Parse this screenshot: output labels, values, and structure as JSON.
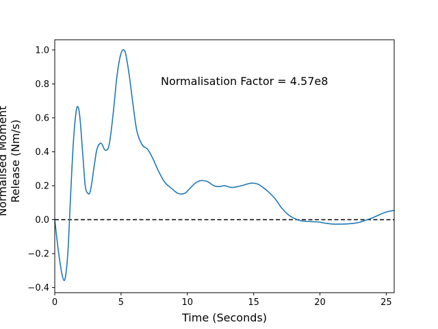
{
  "chart_data": {
    "type": "line",
    "title": "",
    "xlabel": "Time (Seconds)",
    "ylabel_line1": "Normalised Moment",
    "ylabel_line2": "Release (Nm/s)",
    "xlim": [
      0,
      25.6
    ],
    "ylim": [
      -0.43,
      1.06
    ],
    "xticks": [
      0,
      5,
      10,
      15,
      20,
      25
    ],
    "xtick_labels": [
      "0",
      "5",
      "10",
      "15",
      "20",
      "25"
    ],
    "yticks": [
      -0.4,
      -0.2,
      0.0,
      0.2,
      0.4,
      0.6,
      0.8,
      1.0
    ],
    "ytick_labels": [
      "−0.4",
      "−0.2",
      "0.0",
      "0.2",
      "0.4",
      "0.6",
      "0.8",
      "1.0"
    ],
    "grid": false,
    "annotation": "Normalisation Factor = 4.57e8",
    "reference_line": {
      "y": 0.0,
      "style": "dashed",
      "color": "#000000"
    },
    "series": [
      {
        "color": "#1f77b4",
        "x": [
          0,
          0.3,
          0.6,
          0.8,
          1.0,
          1.2,
          1.4,
          1.6,
          1.75,
          1.9,
          2.1,
          2.3,
          2.5,
          2.65,
          2.8,
          3.0,
          3.2,
          3.5,
          3.8,
          4.1,
          4.4,
          4.7,
          5.0,
          5.3,
          5.6,
          5.9,
          6.2,
          6.6,
          7.0,
          7.4,
          7.8,
          8.3,
          8.8,
          9.3,
          9.8,
          10.2,
          10.6,
          11.0,
          11.5,
          12.0,
          12.4,
          12.8,
          13.3,
          13.8,
          14.3,
          14.8,
          15.3,
          15.7,
          16.1,
          16.6,
          17.1,
          17.6,
          18.0,
          18.5,
          19.0,
          19.5,
          20.0,
          20.5,
          21.0,
          21.5,
          22.0,
          22.5,
          23.0,
          23.5,
          24.0,
          24.5,
          25.0,
          25.6
        ],
        "y": [
          0.0,
          -0.2,
          -0.34,
          -0.34,
          -0.18,
          0.15,
          0.45,
          0.63,
          0.665,
          0.6,
          0.4,
          0.2,
          0.155,
          0.16,
          0.22,
          0.33,
          0.42,
          0.45,
          0.41,
          0.44,
          0.62,
          0.85,
          0.98,
          0.99,
          0.86,
          0.68,
          0.52,
          0.44,
          0.415,
          0.36,
          0.29,
          0.22,
          0.185,
          0.155,
          0.155,
          0.185,
          0.215,
          0.23,
          0.225,
          0.2,
          0.195,
          0.2,
          0.19,
          0.195,
          0.205,
          0.215,
          0.21,
          0.19,
          0.165,
          0.125,
          0.07,
          0.03,
          0.01,
          -0.005,
          -0.01,
          -0.012,
          -0.015,
          -0.022,
          -0.026,
          -0.026,
          -0.025,
          -0.022,
          -0.015,
          -0.002,
          0.012,
          0.03,
          0.045,
          0.055
        ]
      }
    ]
  }
}
